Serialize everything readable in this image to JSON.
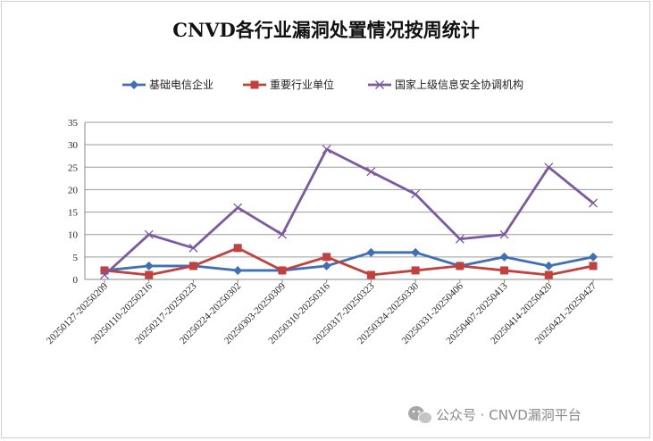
{
  "chart_data": {
    "type": "line",
    "title": "CNVD各行业漏洞处置情况按周统计",
    "categories": [
      "20250127-20250209",
      "20250110-20250216",
      "20250217-20250223",
      "20250224-20250302",
      "20250303-20250309",
      "20250310-20250316",
      "20250317-20250323",
      "20250324-20250330",
      "20250331-20250406",
      "20250407-20250413",
      "20250414-20250420",
      "20250421-20250427"
    ],
    "ylim": [
      0,
      35
    ],
    "yticks": [
      0,
      5,
      10,
      15,
      20,
      25,
      30,
      35
    ],
    "grid": true,
    "legend_position": "top",
    "series": [
      {
        "name": "基础电信企业",
        "color": "#3f6fb5",
        "marker": "diamond",
        "values": [
          2,
          3,
          3,
          2,
          2,
          3,
          6,
          6,
          3,
          5,
          3,
          5
        ]
      },
      {
        "name": "重要行业单位",
        "color": "#c0413e",
        "marker": "square",
        "values": [
          2,
          1,
          3,
          7,
          2,
          5,
          1,
          2,
          3,
          2,
          1,
          3
        ]
      },
      {
        "name": "国家上级信息安全协调机构",
        "color": "#7b5aa0",
        "marker": "x",
        "values": [
          1,
          10,
          7,
          16,
          10,
          29,
          24,
          19,
          9,
          10,
          25,
          17
        ]
      }
    ]
  },
  "watermark": {
    "text": "公众号 · CNVD漏洞平台",
    "icon": "wechat-icon"
  }
}
